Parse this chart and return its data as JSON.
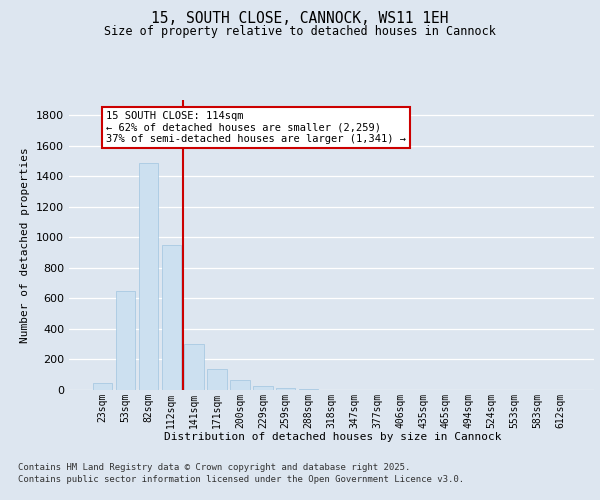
{
  "title": "15, SOUTH CLOSE, CANNOCK, WS11 1EH",
  "subtitle": "Size of property relative to detached houses in Cannock",
  "xlabel": "Distribution of detached houses by size in Cannock",
  "ylabel": "Number of detached properties",
  "categories": [
    "23sqm",
    "53sqm",
    "82sqm",
    "112sqm",
    "141sqm",
    "171sqm",
    "200sqm",
    "229sqm",
    "259sqm",
    "288sqm",
    "318sqm",
    "347sqm",
    "377sqm",
    "406sqm",
    "435sqm",
    "465sqm",
    "494sqm",
    "524sqm",
    "553sqm",
    "583sqm",
    "612sqm"
  ],
  "values": [
    45,
    650,
    1490,
    950,
    300,
    135,
    65,
    25,
    15,
    5,
    2,
    1,
    0,
    0,
    0,
    0,
    0,
    0,
    0,
    0,
    0
  ],
  "bar_color": "#cce0f0",
  "bar_edgecolor": "#a0c4e0",
  "vline_x": 3.5,
  "vline_color": "#cc0000",
  "annotation_line1": "15 SOUTH CLOSE: 114sqm",
  "annotation_line2": "← 62% of detached houses are smaller (2,259)",
  "annotation_line3": "37% of semi-detached houses are larger (1,341) →",
  "annotation_box_facecolor": "#ffffff",
  "annotation_box_edgecolor": "#cc0000",
  "ylim_max": 1900,
  "yticks": [
    0,
    200,
    400,
    600,
    800,
    1000,
    1200,
    1400,
    1600,
    1800
  ],
  "background_color": "#dde6f0",
  "grid_color": "#ffffff",
  "footer_line1": "Contains HM Land Registry data © Crown copyright and database right 2025.",
  "footer_line2": "Contains public sector information licensed under the Open Government Licence v3.0."
}
